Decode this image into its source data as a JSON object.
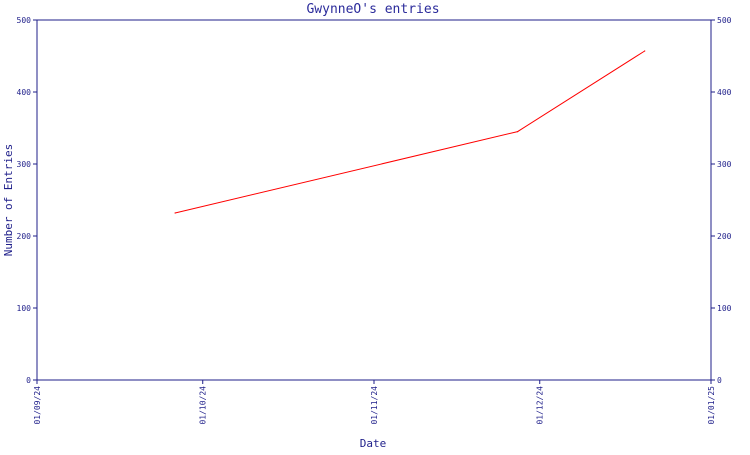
{
  "chart_data": {
    "type": "line",
    "title": "GwynneO's entries",
    "xlabel": "Date",
    "ylabel": "Number of Entries",
    "x_ticks": [
      "01/09/24",
      "01/10/24",
      "01/11/24",
      "01/12/24",
      "01/01/25"
    ],
    "y_ticks": [
      "0",
      "100",
      "200",
      "300",
      "400",
      "500"
    ],
    "xlim": [
      "2024-09-01",
      "2025-01-01"
    ],
    "ylim": [
      0,
      500
    ],
    "series": [
      {
        "x": [
          "2024-09-26",
          "2024-11-27",
          "2024-12-20"
        ],
        "y": [
          232,
          345,
          457
        ]
      }
    ],
    "grid": false,
    "right_axis_mirrored": true,
    "colors": {
      "axis": "#1f1f8a",
      "line": "#ff0000",
      "title": "#2b2b9b"
    }
  }
}
